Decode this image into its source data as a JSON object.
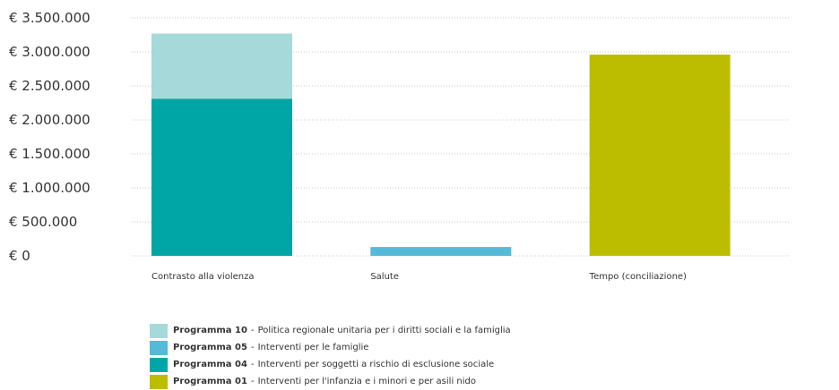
{
  "chart_data": {
    "type": "bar",
    "stacked": true,
    "categories": [
      "Contrasto alla violenza",
      "Salute",
      "Tempo (conciliazione)"
    ],
    "ylim": [
      0,
      3500000
    ],
    "yticks": [
      0,
      500000,
      1000000,
      1500000,
      2000000,
      2500000,
      3000000,
      3500000
    ],
    "ytick_labels": [
      "€ 0",
      "€ 500.000",
      "€ 1.000.000",
      "€ 1.500.000",
      "€ 2.000.000",
      "€ 2.500.000",
      "€ 3.000.000",
      "€ 3.500.000"
    ],
    "grid": true,
    "legend_position": "bottom",
    "series": [
      {
        "name": "Programma 01",
        "description": "Interventi per l'infanzia e i minori e per asili nido",
        "color": "#bdbd00",
        "values": [
          0,
          0,
          2960000
        ]
      },
      {
        "name": "Programma 04",
        "description": "Interventi per soggetti a rischio di esclusione sociale",
        "color": "#00a6a6",
        "values": [
          2310000,
          0,
          0
        ]
      },
      {
        "name": "Programma 05",
        "description": "Interventi per le famiglie",
        "color": "#55b9d8",
        "values": [
          0,
          130000,
          0
        ]
      },
      {
        "name": "Programma 10",
        "description": "Politica regionale unitaria per i diritti sociali e la famiglia",
        "color": "#a6d9d9",
        "values": [
          960000,
          0,
          0
        ]
      }
    ],
    "legend_order": [
      3,
      2,
      1,
      0
    ]
  }
}
